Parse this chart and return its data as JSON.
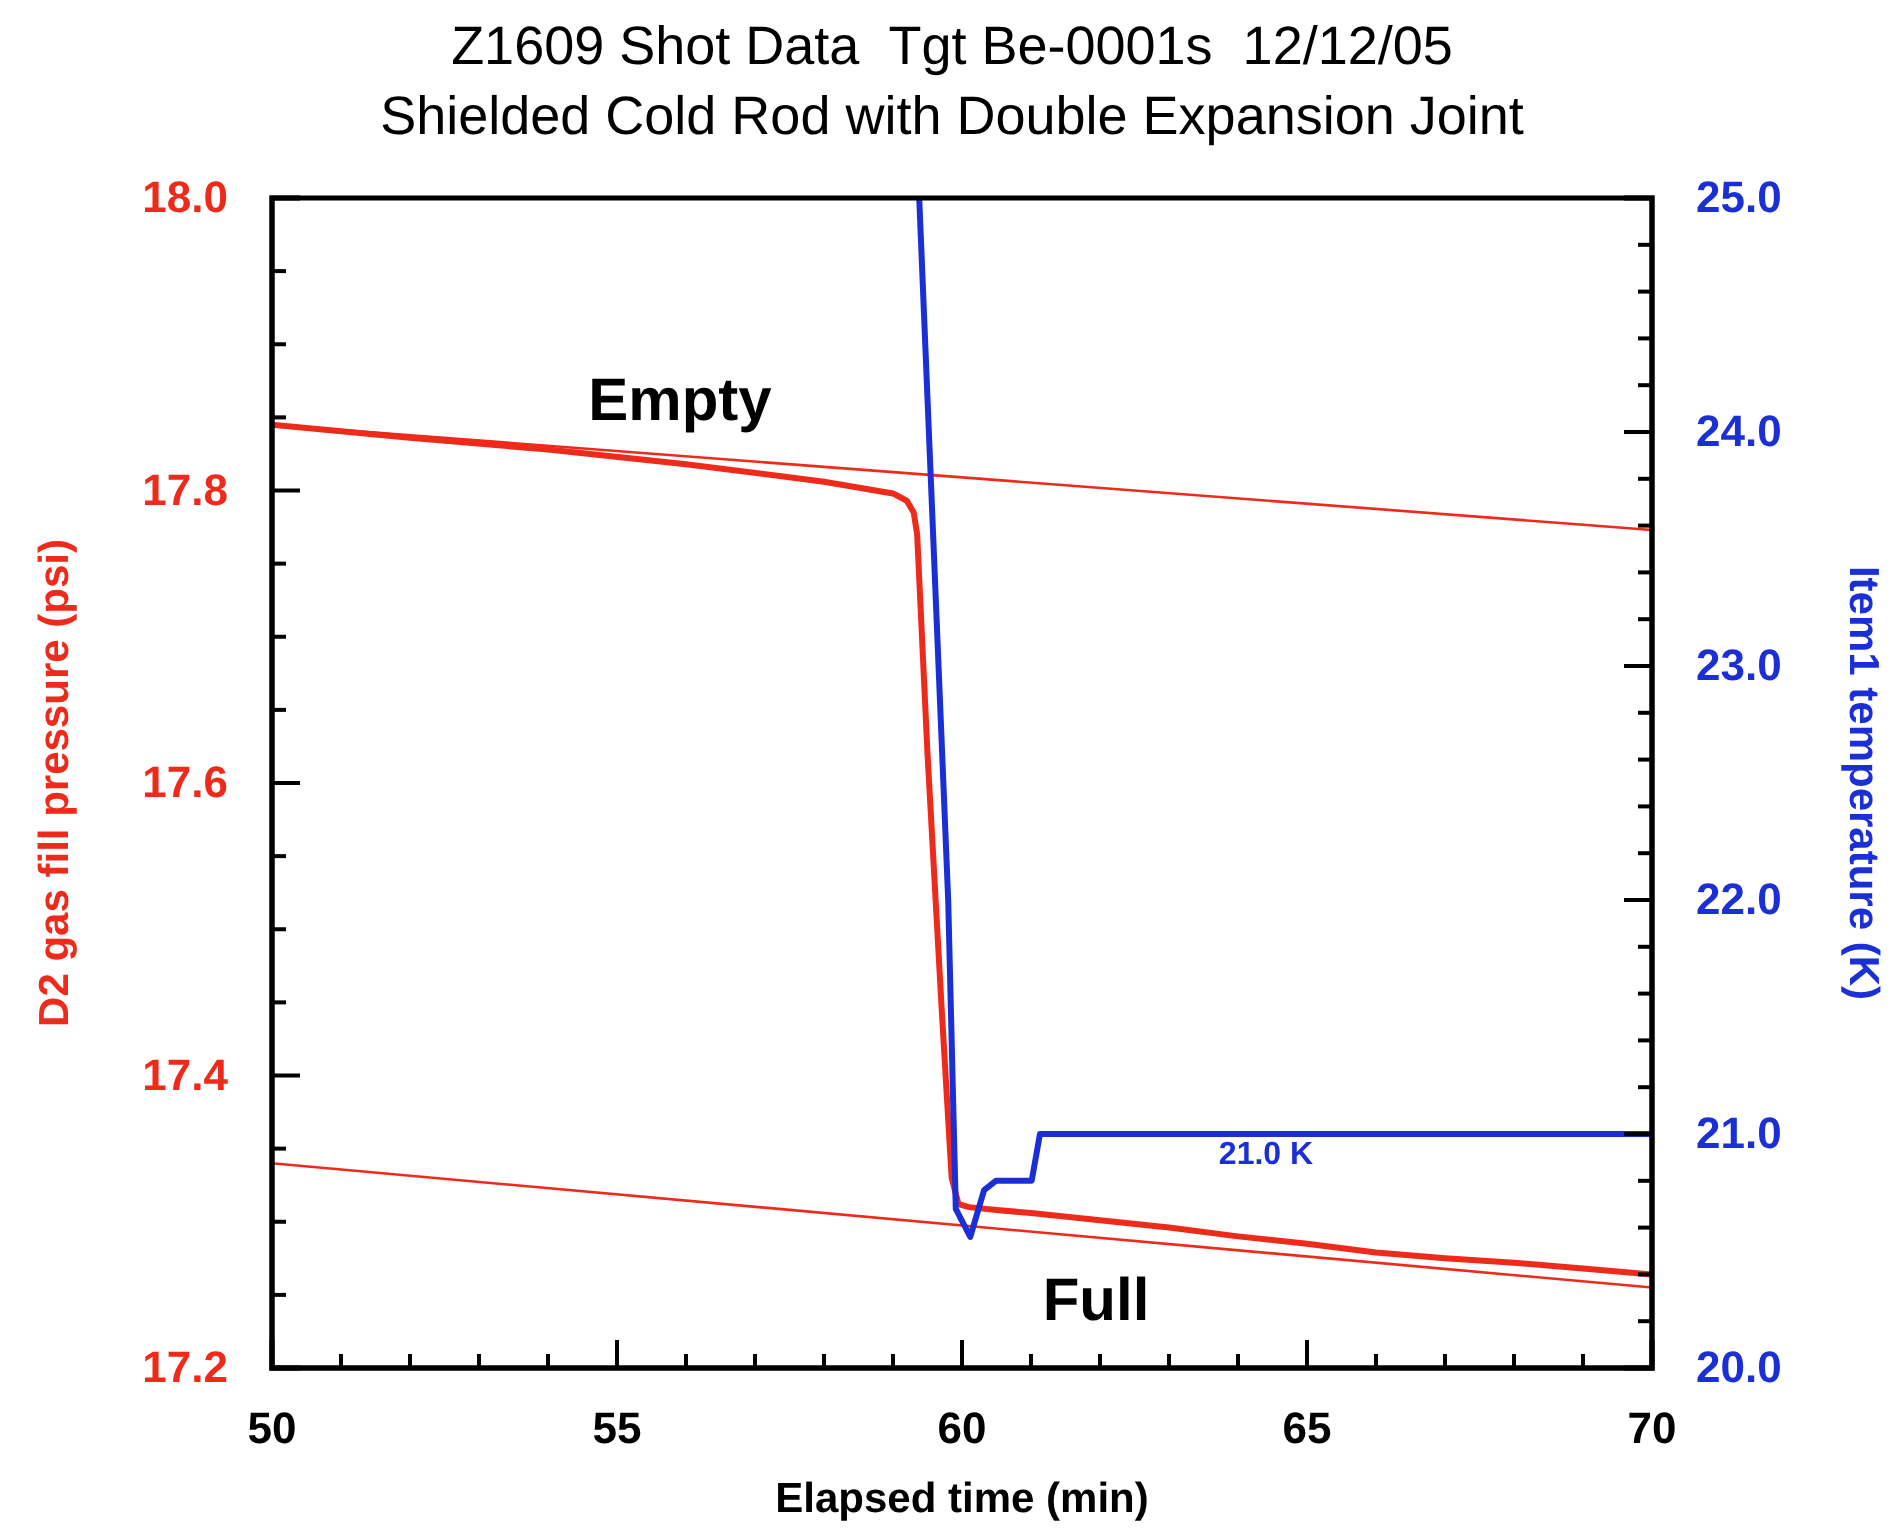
{
  "chart_data": {
    "type": "line",
    "title": "Z1609 Shot Data  Tgt Be-0001s  12/12/05",
    "subtitle": "Shielded Cold Rod with Double Expansion Joint",
    "xlabel": "Elapsed time (min)",
    "ylabel": "D2 gas fill pressure (psi)",
    "y2label": "Item1 temperature (K)",
    "xlim": [
      50,
      70
    ],
    "ylim": [
      17.2,
      18.0
    ],
    "y2lim": [
      20,
      25
    ],
    "xticks": [
      50,
      {
        "value": 51,
        "label": null
      },
      {
        "value": 52,
        "label": null
      },
      {
        "value": 53,
        "label": null
      },
      {
        "value": 54,
        "label": null
      },
      55,
      {
        "value": 56,
        "label": null
      },
      {
        "value": 57,
        "label": null
      },
      {
        "value": 58,
        "label": null
      },
      {
        "value": 59,
        "label": null
      },
      60,
      {
        "value": 61,
        "label": null
      },
      {
        "value": 62,
        "label": null
      },
      {
        "value": 63,
        "label": null
      },
      {
        "value": 64,
        "label": null
      },
      65,
      {
        "value": 66,
        "label": null
      },
      {
        "value": 67,
        "label": null
      },
      {
        "value": 68,
        "label": null
      },
      {
        "value": 69,
        "label": null
      },
      70
    ],
    "yticks": [
      17.2,
      {
        "value": 17.25,
        "label": null
      },
      {
        "value": 17.3,
        "label": null
      },
      {
        "value": 17.35,
        "label": null
      },
      17.4,
      {
        "value": 17.45,
        "label": null
      },
      {
        "value": 17.5,
        "label": null
      },
      {
        "value": 17.55,
        "label": null
      },
      17.6,
      {
        "value": 17.65,
        "label": null
      },
      {
        "value": 17.7,
        "label": null
      },
      {
        "value": 17.75,
        "label": null
      },
      17.8,
      {
        "value": 17.85,
        "label": null
      },
      {
        "value": 17.9,
        "label": null
      },
      {
        "value": 17.95,
        "label": null
      },
      {
        "value": 18,
        "label": "18.0"
      }
    ],
    "y2ticks": [
      {
        "value": 20,
        "label": "20.0"
      },
      {
        "value": 20.2,
        "label": null
      },
      {
        "value": 20.4,
        "label": null
      },
      {
        "value": 20.6,
        "label": null
      },
      {
        "value": 20.8,
        "label": null
      },
      {
        "value": 21,
        "label": "21.0"
      },
      {
        "value": 21.2,
        "label": null
      },
      {
        "value": 21.4,
        "label": null
      },
      {
        "value": 21.6,
        "label": null
      },
      {
        "value": 21.8,
        "label": null
      },
      {
        "value": 22,
        "label": "22.0"
      },
      {
        "value": 22.2,
        "label": null
      },
      {
        "value": 22.4,
        "label": null
      },
      {
        "value": 22.6,
        "label": null
      },
      {
        "value": 22.8,
        "label": null
      },
      {
        "value": 23,
        "label": "23.0"
      },
      {
        "value": 23.2,
        "label": null
      },
      {
        "value": 23.4,
        "label": null
      },
      {
        "value": 23.6,
        "label": null
      },
      {
        "value": 23.8,
        "label": null
      },
      {
        "value": 24,
        "label": "24.0"
      },
      {
        "value": 24.2,
        "label": null
      },
      {
        "value": 24.4,
        "label": null
      },
      {
        "value": 24.6,
        "label": null
      },
      {
        "value": 24.8,
        "label": null
      },
      {
        "value": 25,
        "label": "25.0"
      }
    ],
    "grid": false,
    "marker": "none",
    "line_style": "solid",
    "series": [
      {
        "color": "#ee2a1b",
        "x": [
          50,
          70
        ],
        "values": [
          17.845,
          17.773
        ]
      },
      {
        "color": "#ee2a1b",
        "x": [
          50,
          70
        ],
        "values": [
          17.34,
          17.255
        ]
      },
      {
        "color": "#ee2a1b",
        "x": [
          50,
          52,
          54,
          56,
          58,
          59,
          59.2,
          59.3,
          59.35,
          59.5,
          59.7,
          59.85,
          59.95,
          60.1,
          60.5,
          61,
          62,
          63,
          64,
          65,
          66,
          67,
          68,
          69,
          70
        ],
        "values": [
          17.845,
          17.836,
          17.828,
          17.818,
          17.806,
          17.798,
          17.793,
          17.785,
          17.77,
          17.62,
          17.45,
          17.33,
          17.312,
          17.31,
          17.308,
          17.306,
          17.301,
          17.296,
          17.29,
          17.285,
          17.279,
          17.275,
          17.272,
          17.268,
          17.264
        ]
      },
      {
        "color": "#1a2fd6",
        "axis": "y2",
        "x": [
          59.38,
          59.8,
          59.91,
          60.12,
          60.26,
          60.32,
          60.49,
          61.01,
          61.13,
          70
        ],
        "values": [
          25.0,
          22.0,
          20.68,
          20.56,
          20.7,
          20.76,
          20.8,
          20.8,
          21.0,
          21.0
        ]
      }
    ],
    "annotations": [
      "Empty",
      "Full",
      "21.0 K"
    ]
  }
}
